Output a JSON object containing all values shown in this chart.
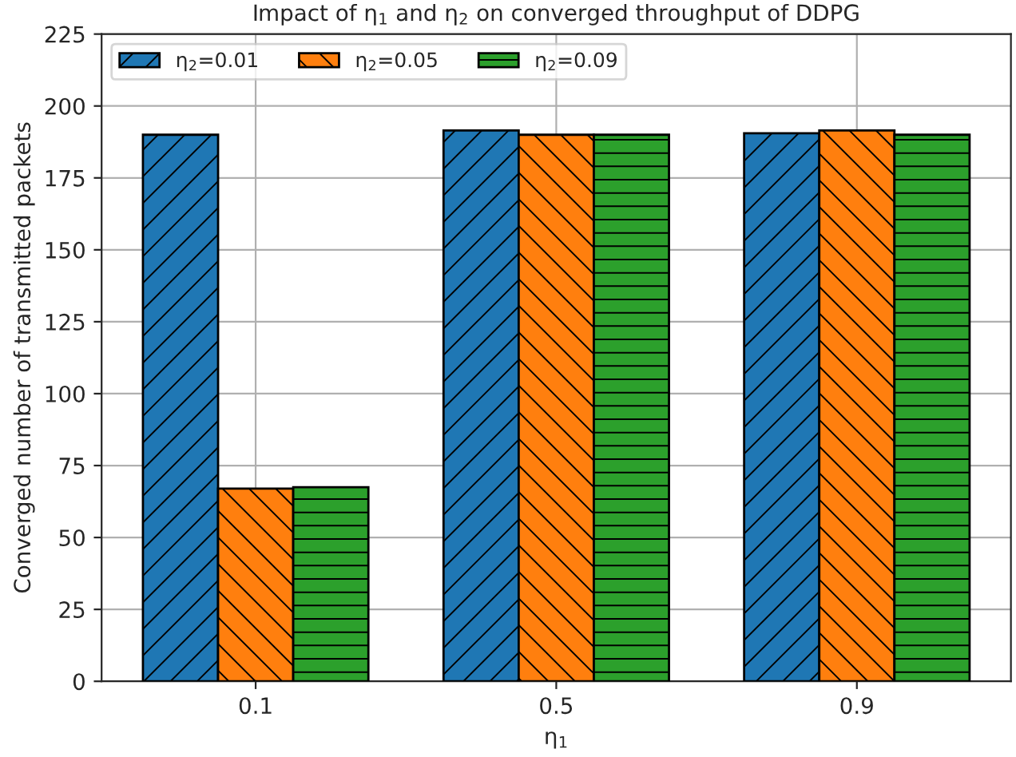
{
  "chart_data": {
    "type": "bar",
    "title": "Impact of η$_{1}$ and η$_{2}$ on converged throughput of DDPG",
    "xlabel": "η$_{1}$",
    "ylabel": "Converged number of transmitted packets",
    "categories": [
      "0.1",
      "0.5",
      "0.9"
    ],
    "series": [
      {
        "name": "η$_{2}$=0.01",
        "color": "#1f77b4",
        "values": [
          190,
          191.5,
          190.5
        ]
      },
      {
        "name": "η$_{2}$=0.05",
        "color": "#ff7f0e",
        "values": [
          67,
          190,
          191.5
        ]
      },
      {
        "name": "η$_{2}$=0.09",
        "color": "#2ca02c",
        "values": [
          67.5,
          190,
          190
        ]
      }
    ],
    "ylim": [
      0,
      225
    ],
    "yticks": [
      0,
      25,
      50,
      75,
      100,
      125,
      150,
      175,
      200,
      225
    ],
    "grid": true,
    "legend": "top left"
  }
}
